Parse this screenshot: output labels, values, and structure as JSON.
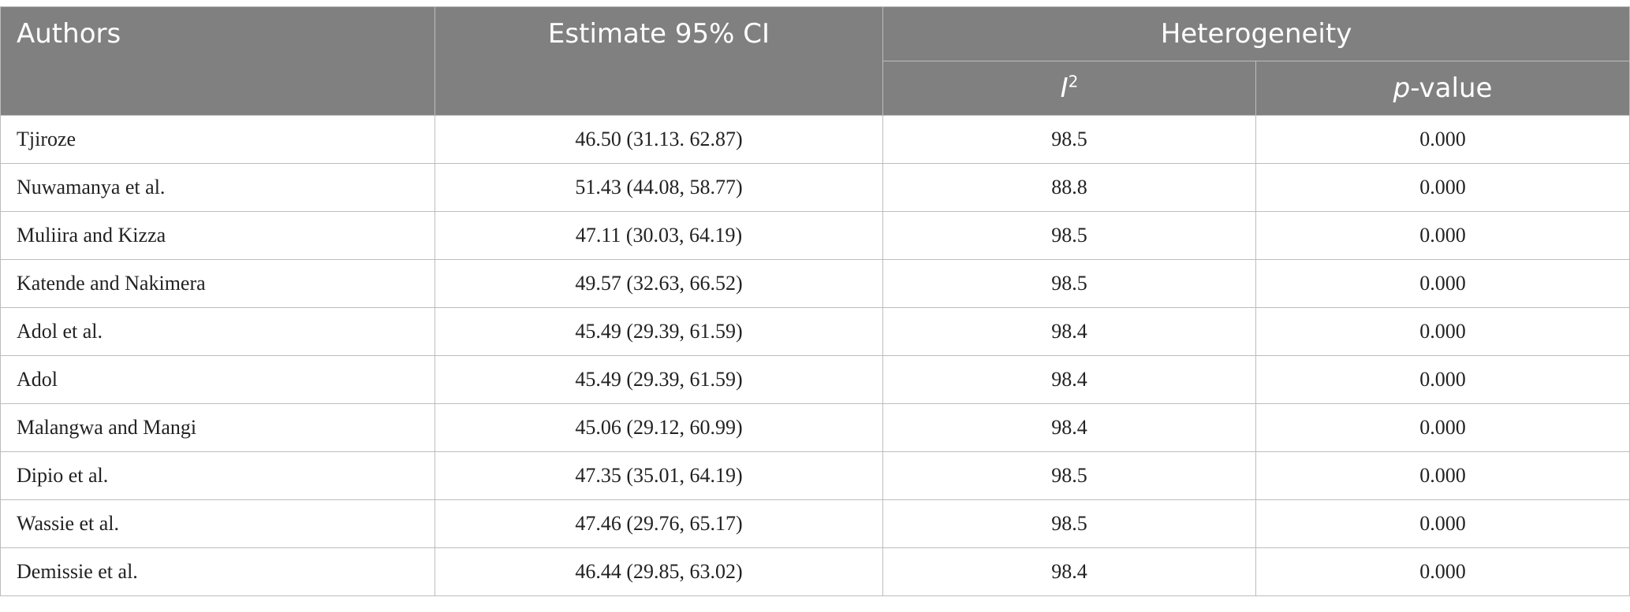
{
  "header": {
    "authors": "Authors",
    "estimate": "Estimate 95% CI",
    "heterogeneity": "Heterogeneity",
    "i2_base": "I",
    "i2_sup": "2",
    "pvalue_ital": "p",
    "pvalue_rest": "-value"
  },
  "rows": [
    {
      "author": "Tjiroze",
      "estimate": "46.50 (31.13. 62.87)",
      "i2": "98.5",
      "p": "0.000"
    },
    {
      "author": "Nuwamanya et al.",
      "estimate": "51.43 (44.08, 58.77)",
      "i2": "88.8",
      "p": "0.000"
    },
    {
      "author": "Muliira and Kizza",
      "estimate": "47.11 (30.03, 64.19)",
      "i2": "98.5",
      "p": "0.000"
    },
    {
      "author": "Katende and Nakimera",
      "estimate": "49.57 (32.63, 66.52)",
      "i2": "98.5",
      "p": "0.000"
    },
    {
      "author": "Adol et al.",
      "estimate": "45.49 (29.39, 61.59)",
      "i2": "98.4",
      "p": "0.000"
    },
    {
      "author": "Adol",
      "estimate": "45.49 (29.39, 61.59)",
      "i2": "98.4",
      "p": "0.000"
    },
    {
      "author": "Malangwa and Mangi",
      "estimate": "45.06 (29.12, 60.99)",
      "i2": "98.4",
      "p": "0.000"
    },
    {
      "author": "Dipio et al.",
      "estimate": "47.35 (35.01, 64.19)",
      "i2": "98.5",
      "p": "0.000"
    },
    {
      "author": "Wassie et al.",
      "estimate": "47.46 (29.76, 65.17)",
      "i2": "98.5",
      "p": "0.000"
    },
    {
      "author": "Demissie et al.",
      "estimate": "46.44 (29.85, 63.02)",
      "i2": "98.4",
      "p": "0.000"
    }
  ]
}
